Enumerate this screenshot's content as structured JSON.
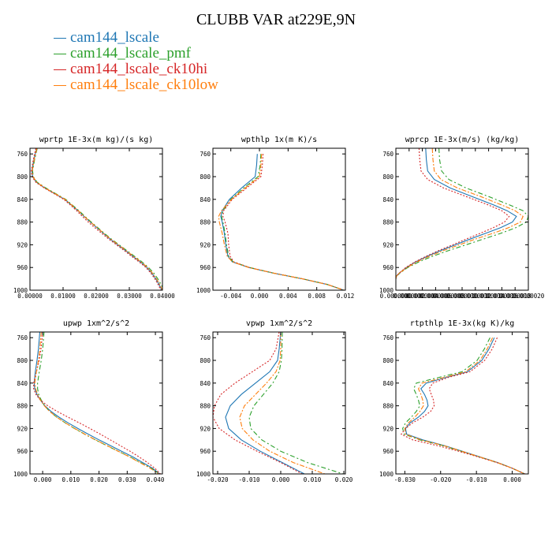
{
  "title": "CLUBB VAR at229E,9N",
  "legend": [
    {
      "label": "cam144_lscale",
      "color": "#1f77b4"
    },
    {
      "label": "cam144_lscale_pmf",
      "color": "#2ca02c"
    },
    {
      "label": "cam144_lscale_ck10hi",
      "color": "#d62728"
    },
    {
      "label": "cam144_lscale_ck10low",
      "color": "#ff7f0e"
    }
  ],
  "chart_data": [
    {
      "type": "line",
      "title": "wprtp  1E-3x(m kg)/(s kg)",
      "xlim": [
        0.0,
        0.04
      ],
      "ylim": [
        1000,
        750
      ],
      "xticks": [
        0.0,
        0.01,
        0.02,
        0.03,
        0.04
      ],
      "xtick_labels": [
        "0.00000",
        "0.01000",
        "0.02000",
        "0.03000",
        "0.04000"
      ],
      "yticks": [
        760,
        800,
        840,
        880,
        920,
        960,
        1000
      ],
      "ytick_labels": [
        "760",
        "800",
        "840",
        "880",
        "920",
        "960",
        "1000"
      ],
      "y": [
        750,
        770,
        790,
        800,
        810,
        820,
        830,
        840,
        850,
        860,
        870,
        880,
        890,
        900,
        910,
        920,
        930,
        940,
        950,
        960,
        970,
        980,
        990,
        1000
      ],
      "series": [
        {
          "name": "cam144_lscale",
          "values": [
            0.002,
            0.0012,
            0.0006,
            0.0008,
            0.002,
            0.0045,
            0.0075,
            0.0105,
            0.0125,
            0.0145,
            0.0163,
            0.0182,
            0.0202,
            0.0222,
            0.0242,
            0.0265,
            0.0288,
            0.031,
            0.0333,
            0.0353,
            0.0368,
            0.038,
            0.039,
            0.0398
          ]
        },
        {
          "name": "cam144_lscale_pmf",
          "values": [
            0.0022,
            0.0014,
            0.0008,
            0.001,
            0.0022,
            0.0048,
            0.0078,
            0.0108,
            0.0128,
            0.0148,
            0.0166,
            0.0185,
            0.0205,
            0.0225,
            0.0246,
            0.0269,
            0.0292,
            0.0315,
            0.0338,
            0.0358,
            0.0374,
            0.0386,
            0.0396,
            0.0405
          ]
        },
        {
          "name": "cam144_lscale_ck10hi",
          "values": [
            0.0018,
            0.001,
            0.0004,
            0.0006,
            0.0018,
            0.0043,
            0.0073,
            0.0102,
            0.0122,
            0.0141,
            0.0158,
            0.0176,
            0.0196,
            0.0217,
            0.0238,
            0.0261,
            0.0284,
            0.0306,
            0.0329,
            0.035,
            0.0365,
            0.0377,
            0.0387,
            0.0395
          ]
        },
        {
          "name": "cam144_lscale_ck10low",
          "values": [
            0.0021,
            0.0013,
            0.0007,
            0.0009,
            0.0021,
            0.0046,
            0.0076,
            0.0106,
            0.0126,
            0.0146,
            0.0164,
            0.0183,
            0.0203,
            0.0223,
            0.0244,
            0.0267,
            0.029,
            0.0312,
            0.0335,
            0.0355,
            0.037,
            0.0382,
            0.0392,
            0.04
          ]
        }
      ]
    },
    {
      "type": "line",
      "title": "wpthlp  1x(m K)/s",
      "xlim": [
        -0.0065,
        0.012
      ],
      "ylim": [
        1000,
        750
      ],
      "xticks": [
        -0.004,
        0.0,
        0.004,
        0.008,
        0.012
      ],
      "xtick_labels": [
        "-0.004",
        "0.000",
        "0.004",
        "0.008",
        "0.012"
      ],
      "yticks": [
        760,
        800,
        840,
        880,
        920,
        960,
        1000
      ],
      "ytick_labels": [
        "760",
        "800",
        "840",
        "880",
        "920",
        "960",
        "1000"
      ],
      "y": [
        760,
        780,
        800,
        820,
        840,
        860,
        870,
        880,
        900,
        920,
        940,
        950,
        960,
        970,
        980,
        990,
        1000
      ],
      "series": [
        {
          "name": "cam144_lscale",
          "values": [
            -0.0003,
            -0.0004,
            -0.0006,
            -0.0025,
            -0.0042,
            -0.0052,
            -0.0054,
            -0.0052,
            -0.0049,
            -0.0047,
            -0.0044,
            -0.0038,
            -0.0015,
            0.002,
            0.006,
            0.0095,
            0.0118
          ]
        },
        {
          "name": "cam144_lscale_pmf",
          "values": [
            0.0002,
            0.0001,
            -0.0002,
            -0.0022,
            -0.004,
            -0.0051,
            -0.0053,
            -0.0051,
            -0.0048,
            -0.0046,
            -0.0043,
            -0.0037,
            -0.0014,
            0.002,
            0.006,
            0.0095,
            0.0118
          ]
        },
        {
          "name": "cam144_lscale_ck10hi",
          "values": [
            0.0005,
            0.0004,
            0.0002,
            -0.0018,
            -0.0038,
            -0.005,
            -0.0051,
            -0.0048,
            -0.0044,
            -0.0043,
            -0.0041,
            -0.0036,
            -0.0014,
            0.002,
            0.006,
            0.0095,
            0.0118
          ]
        },
        {
          "name": "cam144_lscale_ck10low",
          "values": [
            0.0003,
            0.0002,
            0.0,
            -0.002,
            -0.0039,
            -0.0053,
            -0.0057,
            -0.0056,
            -0.0052,
            -0.0049,
            -0.0045,
            -0.0038,
            -0.0015,
            0.002,
            0.006,
            0.0095,
            0.0118
          ]
        }
      ]
    },
    {
      "type": "line",
      "title": "wprcp  1E-3x(m/s) (kg/kg)",
      "xlim": [
        0.0,
        2e-06
      ],
      "ylim": [
        1000,
        750
      ],
      "xticks": [
        0.0,
        2e-07,
        4e-07,
        6e-07,
        8e-07,
        1e-06,
        1.2e-06,
        1.4e-06,
        1.6e-06,
        1.8e-06,
        2e-06
      ],
      "xtick_labels": [
        "0.0000000",
        "0.0000002",
        "0.0000004",
        "0.0000006",
        "0.0000008",
        "0.0000010",
        "0.0000012",
        "0.0000014",
        "0.0000016",
        "0.0000018",
        "0.0000020"
      ],
      "yticks": [
        760,
        800,
        840,
        880,
        920,
        960,
        1000
      ],
      "ytick_labels": [
        "760",
        "800",
        "840",
        "880",
        "920",
        "960",
        "1000"
      ],
      "y": [
        750,
        770,
        790,
        805,
        820,
        835,
        850,
        860,
        870,
        880,
        890,
        900,
        910,
        920,
        930,
        940,
        950,
        960,
        970,
        975,
        980
      ],
      "series": [
        {
          "name": "cam144_lscale",
          "values": [
            4.5e-07,
            4.6e-07,
            4.8e-07,
            5.8e-07,
            8.2e-07,
            1.15e-06,
            1.48e-06,
            1.68e-06,
            1.82e-06,
            1.76e-06,
            1.58e-06,
            1.35e-06,
            1.12e-06,
            9e-07,
            6.8e-07,
            4.8e-07,
            3e-07,
            1.6e-07,
            5e-08,
            1e-08,
            0.0
          ]
        },
        {
          "name": "cam144_lscale_pmf",
          "values": [
            6.5e-07,
            6.6e-07,
            6.9e-07,
            8e-07,
            1.06e-06,
            1.4e-06,
            1.72e-06,
            1.92e-06,
            2e-06,
            1.97e-06,
            1.81e-06,
            1.58e-06,
            1.32e-06,
            1.06e-06,
            8e-07,
            5.6e-07,
            3.5e-07,
            1.8e-07,
            6e-08,
            1e-08,
            0.0
          ]
        },
        {
          "name": "cam144_lscale_ck10hi",
          "values": [
            3.5e-07,
            3.6e-07,
            3.8e-07,
            4.8e-07,
            7.2e-07,
            1.06e-06,
            1.4e-06,
            1.6e-06,
            1.71e-06,
            1.64e-06,
            1.47e-06,
            1.27e-06,
            1.06e-06,
            8.6e-07,
            6.5e-07,
            4.6e-07,
            2.9e-07,
            1.5e-07,
            5e-08,
            1e-08,
            0.0
          ]
        },
        {
          "name": "cam144_lscale_ck10low",
          "values": [
            5.5e-07,
            5.6e-07,
            5.8e-07,
            6.8e-07,
            9.3e-07,
            1.28e-06,
            1.6e-06,
            1.8e-06,
            1.92e-06,
            1.88e-06,
            1.7e-06,
            1.46e-06,
            1.2e-06,
            9.6e-07,
            7.2e-07,
            5.1e-07,
            3.2e-07,
            1.7e-07,
            5e-08,
            1e-08,
            0.0
          ]
        }
      ]
    },
    {
      "type": "line",
      "title": "upwp  1xm^2/s^2",
      "xlim": [
        -0.0045,
        0.0425
      ],
      "ylim": [
        1000,
        750
      ],
      "xticks": [
        0.0,
        0.01,
        0.02,
        0.03,
        0.04
      ],
      "xtick_labels": [
        "0.000",
        "0.010",
        "0.020",
        "0.030",
        "0.040"
      ],
      "yticks": [
        760,
        800,
        840,
        880,
        920,
        960,
        1000
      ],
      "ytick_labels": [
        "760",
        "800",
        "840",
        "880",
        "920",
        "960",
        "1000"
      ],
      "y": [
        750,
        780,
        800,
        820,
        840,
        850,
        860,
        870,
        880,
        890,
        900,
        910,
        920,
        930,
        940,
        950,
        960,
        970,
        980,
        990,
        1000
      ],
      "series": [
        {
          "name": "cam144_lscale",
          "values": [
            -0.001,
            -0.0015,
            -0.002,
            -0.0026,
            -0.003,
            -0.0028,
            -0.002,
            -0.0008,
            0.0008,
            0.003,
            0.0058,
            0.009,
            0.0125,
            0.0162,
            0.02,
            0.024,
            0.028,
            0.032,
            0.0355,
            0.039,
            0.0415
          ]
        },
        {
          "name": "cam144_lscale_pmf",
          "values": [
            0.0005,
            0.0,
            -0.0005,
            -0.0012,
            -0.0018,
            -0.0018,
            -0.0014,
            -0.0005,
            0.0007,
            0.0025,
            0.005,
            0.008,
            0.0113,
            0.0149,
            0.0187,
            0.0227,
            0.0268,
            0.031,
            0.0347,
            0.0385,
            0.0415
          ]
        },
        {
          "name": "cam144_lscale_ck10hi",
          "values": [
            0.0,
            -0.0006,
            -0.0012,
            -0.0022,
            -0.0032,
            -0.0032,
            -0.0024,
            -0.0008,
            0.0018,
            0.0052,
            0.009,
            0.013,
            0.0168,
            0.0205,
            0.024,
            0.0275,
            0.031,
            0.0342,
            0.0372,
            0.0398,
            0.0418
          ]
        },
        {
          "name": "cam144_lscale_ck10low",
          "values": [
            -0.0005,
            -0.001,
            -0.0015,
            -0.0022,
            -0.0028,
            -0.0025,
            -0.0018,
            -0.0008,
            0.0006,
            0.0025,
            0.005,
            0.008,
            0.0114,
            0.015,
            0.0188,
            0.0228,
            0.0268,
            0.0308,
            0.0345,
            0.0382,
            0.0412
          ]
        }
      ]
    },
    {
      "type": "line",
      "title": "vpwp  1xm^2/s^2",
      "xlim": [
        -0.0215,
        0.0205
      ],
      "ylim": [
        1000,
        750
      ],
      "xticks": [
        -0.02,
        -0.01,
        0.0,
        0.01,
        0.02
      ],
      "xtick_labels": [
        "-0.020",
        "-0.010",
        "0.000",
        "0.010",
        "0.020"
      ],
      "yticks": [
        760,
        800,
        840,
        880,
        920,
        960,
        1000
      ],
      "ytick_labels": [
        "760",
        "800",
        "840",
        "880",
        "920",
        "960",
        "1000"
      ],
      "y": [
        750,
        780,
        800,
        820,
        840,
        860,
        880,
        900,
        920,
        940,
        960,
        980,
        1000
      ],
      "series": [
        {
          "name": "cam144_lscale",
          "values": [
            0.0,
            -0.0005,
            -0.001,
            -0.0035,
            -0.008,
            -0.0125,
            -0.016,
            -0.0175,
            -0.0165,
            -0.0125,
            -0.0065,
            0.0005,
            0.0075
          ]
        },
        {
          "name": "cam144_lscale_pmf",
          "values": [
            0.0005,
            0.0004,
            0.0002,
            -0.0005,
            -0.0025,
            -0.0055,
            -0.0085,
            -0.01,
            -0.0095,
            -0.006,
            0.0,
            0.0085,
            0.0198
          ]
        },
        {
          "name": "cam144_lscale_ck10hi",
          "values": [
            -0.0005,
            -0.0015,
            -0.0035,
            -0.009,
            -0.0145,
            -0.019,
            -0.021,
            -0.0215,
            -0.0195,
            -0.0145,
            -0.0075,
            0.0,
            0.0068
          ]
        },
        {
          "name": "cam144_lscale_ck10low",
          "values": [
            0.0,
            0.0,
            -0.0002,
            -0.0015,
            -0.0045,
            -0.008,
            -0.0115,
            -0.013,
            -0.0122,
            -0.0088,
            -0.0035,
            0.004,
            0.014
          ]
        }
      ]
    },
    {
      "type": "line",
      "title": "rtpthlp  1E-3x(kg K)/kg",
      "xlim": [
        -0.0325,
        0.0045
      ],
      "ylim": [
        1000,
        750
      ],
      "xticks": [
        -0.03,
        -0.02,
        -0.01,
        0.0
      ],
      "xtick_labels": [
        "-0.030",
        "-0.020",
        "-0.010",
        "0.000"
      ],
      "yticks": [
        760,
        800,
        840,
        880,
        920,
        960,
        1000
      ],
      "ytick_labels": [
        "760",
        "800",
        "840",
        "880",
        "920",
        "960",
        "1000"
      ],
      "y": [
        760,
        780,
        800,
        820,
        830,
        840,
        850,
        860,
        870,
        880,
        890,
        900,
        910,
        920,
        930,
        940,
        950,
        960,
        970,
        980,
        990,
        1000
      ],
      "series": [
        {
          "name": "cam144_lscale",
          "values": [
            -0.005,
            -0.0065,
            -0.0085,
            -0.0125,
            -0.0185,
            -0.024,
            -0.0255,
            -0.0245,
            -0.0238,
            -0.0235,
            -0.0245,
            -0.0262,
            -0.0285,
            -0.0298,
            -0.0295,
            -0.025,
            -0.019,
            -0.014,
            -0.009,
            -0.004,
            0.0,
            0.0035
          ]
        },
        {
          "name": "cam144_lscale_pmf",
          "values": [
            -0.0062,
            -0.0078,
            -0.0098,
            -0.014,
            -0.0205,
            -0.0268,
            -0.0275,
            -0.0268,
            -0.0262,
            -0.0258,
            -0.0268,
            -0.0282,
            -0.0298,
            -0.0306,
            -0.0302,
            -0.0258,
            -0.0195,
            -0.0143,
            -0.0092,
            -0.0042,
            0.0,
            0.0035
          ]
        },
        {
          "name": "cam144_lscale_ck10hi",
          "values": [
            -0.0042,
            -0.0056,
            -0.0077,
            -0.0118,
            -0.0178,
            -0.0222,
            -0.0232,
            -0.0226,
            -0.022,
            -0.0218,
            -0.0228,
            -0.025,
            -0.0278,
            -0.0298,
            -0.031,
            -0.0278,
            -0.021,
            -0.015,
            -0.0095,
            -0.0043,
            0.0,
            0.0035
          ]
        },
        {
          "name": "cam144_lscale_ck10low",
          "values": [
            -0.0055,
            -0.007,
            -0.009,
            -0.013,
            -0.019,
            -0.0252,
            -0.0262,
            -0.0255,
            -0.025,
            -0.0248,
            -0.0258,
            -0.0272,
            -0.029,
            -0.03,
            -0.0298,
            -0.0255,
            -0.0192,
            -0.0141,
            -0.0091,
            -0.0041,
            0.0,
            0.0035
          ]
        }
      ]
    }
  ]
}
